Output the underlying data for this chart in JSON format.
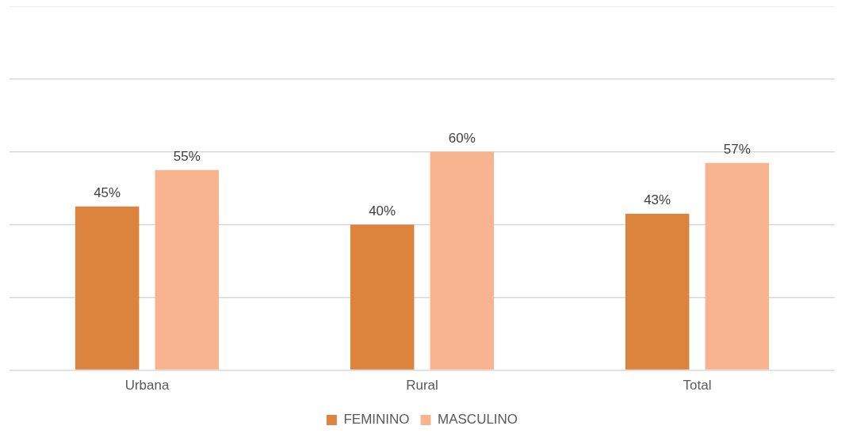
{
  "chart_data": {
    "type": "bar",
    "categories": [
      "Urbana",
      "Rural",
      "Total"
    ],
    "series": [
      {
        "name": "FEMININO",
        "color": "#dc843e",
        "values": [
          45,
          40,
          43
        ],
        "value_labels": [
          "45%",
          "40%",
          "43%"
        ]
      },
      {
        "name": "MASCULINO",
        "color": "#f8b48f",
        "values": [
          55,
          60,
          57
        ],
        "value_labels": [
          "55%",
          "60%",
          "57%"
        ]
      }
    ],
    "ylim": [
      0,
      100
    ],
    "yticks": [
      {
        "value": 0,
        "label": null
      },
      {
        "value": 20,
        "label": null
      },
      {
        "value": 40,
        "label": null
      },
      {
        "value": 60,
        "label": null
      },
      {
        "value": 80,
        "label": null
      },
      {
        "value": 100,
        "label": null
      }
    ],
    "tick_labels": "x",
    "grid": "y",
    "legend": "bottom"
  }
}
